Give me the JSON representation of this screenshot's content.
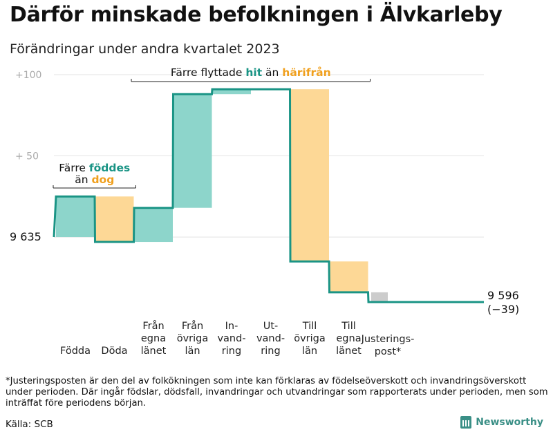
{
  "title": "Därför minskade befolkningen i Älvkarleby",
  "subtitle": "Förändringar under andra kvartalet 2023",
  "chart_data": {
    "type": "waterfall",
    "start_value": 9635,
    "start_label": "9 635",
    "end_value": 9596,
    "end_label": "9 596",
    "end_change_label": "(−39)",
    "ylim": [
      -50,
      100
    ],
    "y_ticks": [
      {
        "value": 100,
        "label": "+100"
      },
      {
        "value": 50,
        "label": "+  50"
      },
      {
        "value": 0,
        "label": ""
      }
    ],
    "steps": [
      {
        "label_lines": [
          "Födda"
        ],
        "value": 25,
        "kind": "in"
      },
      {
        "label_lines": [
          "Döda"
        ],
        "value": -28,
        "kind": "out"
      },
      {
        "label_lines": [
          "Från",
          "egna",
          "länet"
        ],
        "value": 21,
        "kind": "in"
      },
      {
        "label_lines": [
          "Från",
          "övriga",
          "län"
        ],
        "value": 70,
        "kind": "in"
      },
      {
        "label_lines": [
          "In-",
          "vand-",
          "ring"
        ],
        "value": 3,
        "kind": "in"
      },
      {
        "label_lines": [
          "Ut-",
          "vand-",
          "ring"
        ],
        "value": 0,
        "kind": "out"
      },
      {
        "label_lines": [
          "Till",
          "övriga",
          "län"
        ],
        "value": -106,
        "kind": "out"
      },
      {
        "label_lines": [
          "Till",
          "egna",
          "länet"
        ],
        "value": -19,
        "kind": "out"
      },
      {
        "label_lines": [
          "Justerings-",
          "post*"
        ],
        "value": -6,
        "kind": "adjust"
      }
    ],
    "annotations": [
      {
        "text_parts": [
          "Färre ",
          "föddes"
        ],
        "part_kinds": [
          "plain",
          "in"
        ],
        "line2_parts": [
          "än ",
          "dog"
        ],
        "line2_kinds": [
          "plain",
          "out"
        ],
        "over_steps": [
          0,
          1
        ]
      },
      {
        "text_parts": [
          "Färre flyttade ",
          "hit",
          " än ",
          "härifrån"
        ],
        "part_kinds": [
          "plain",
          "in",
          "plain",
          "out"
        ],
        "over_steps": [
          2,
          7
        ]
      }
    ],
    "colors": {
      "line": "#1a9485",
      "in": "#8dd5cb",
      "out": "#fdd896",
      "adjust": "#cccccc",
      "in_text": "#1a9485",
      "out_text": "#f0a01e",
      "grid": "#e3e3e3"
    }
  },
  "footnote": "*Justeringsposten är den del av folkökningen som inte kan förklaras av födelseöverskott och invandringsöverskott under perioden. Där ingår födslar, dödsfall, invandringar och utvandringar som rapporterats under perioden, men som inträffat före periodens början.",
  "source": "Källa: SCB",
  "brand": {
    "name": "Newsworthy",
    "icon": "bar-chart-icon"
  }
}
